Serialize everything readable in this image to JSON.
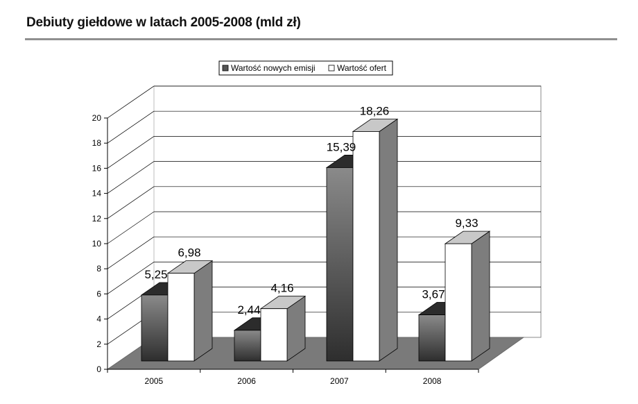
{
  "header": {
    "title": "Debiuty giełdowe w latach 2005-2008 (mld zł)"
  },
  "chart_data": {
    "type": "bar",
    "style": "3d-clustered-column",
    "title": "Debiuty giełdowe w latach 2005-2008 (mld zł)",
    "xlabel": "",
    "ylabel": "",
    "categories": [
      "2005",
      "2006",
      "2007",
      "2008"
    ],
    "ylim": [
      0,
      20
    ],
    "yticks": [
      "0",
      "2",
      "4",
      "6",
      "8",
      "10",
      "12",
      "14",
      "16",
      "18",
      "20"
    ],
    "grid": true,
    "legend_position": "top-center",
    "series": [
      {
        "name": "Wartość nowych emisji",
        "values": [
          5.25,
          2.44,
          15.39,
          3.67
        ],
        "labels": [
          "5,25",
          "2,44",
          "15,39",
          "3,67"
        ],
        "color": "#666666"
      },
      {
        "name": "Wartość ofert",
        "values": [
          6.98,
          4.16,
          18.26,
          9.33
        ],
        "labels": [
          "6,98",
          "4,16",
          "18,26",
          "9,33"
        ],
        "color": "#ffffff"
      }
    ]
  }
}
